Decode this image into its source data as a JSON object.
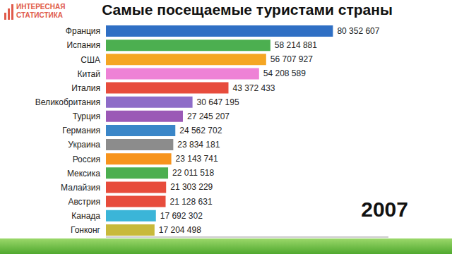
{
  "chart_data": {
    "type": "bar",
    "title": "Самые посещаемые туристами страны",
    "orientation": "horizontal",
    "categories": [
      "Франция",
      "Испания",
      "США",
      "Китай",
      "Италия",
      "Великобритания",
      "Турция",
      "Германия",
      "Украина",
      "Россия",
      "Мексика",
      "Малайзия",
      "Австрия",
      "Канада",
      "Гонконг"
    ],
    "values": [
      80352607,
      58214881,
      56707927,
      54208589,
      43372433,
      30647195,
      27245207,
      24562702,
      23834181,
      23143741,
      22011518,
      21303229,
      21128631,
      17692302,
      17204498
    ],
    "value_labels": [
      "80 352 607",
      "58 214 881",
      "56 707 927",
      "54 208 589",
      "43 372 433",
      "30 647 195",
      "27 245 207",
      "24 562 702",
      "23 834 181",
      "23 143 741",
      "22 011 518",
      "21 303 229",
      "21 128 631",
      "17 692 302",
      "17 204 498"
    ],
    "colors": [
      "#2f6fc4",
      "#4caf50",
      "#f5a623",
      "#ee82d6",
      "#e74c3c",
      "#8e6cc8",
      "#9b59b6",
      "#3a86c8",
      "#8c8c8c",
      "#f7941d",
      "#4caf50",
      "#e74c3c",
      "#e74c3c",
      "#3bb5d8",
      "#c8b93a"
    ],
    "xlim": [
      0,
      100000000
    ],
    "xticks": [],
    "grid": false,
    "data_labels": true,
    "tick_labels": "y",
    "annotation": "2007"
  },
  "logo": [
    "ИНТЕРЕСНАЯ",
    "СТАТИСТИКА"
  ]
}
